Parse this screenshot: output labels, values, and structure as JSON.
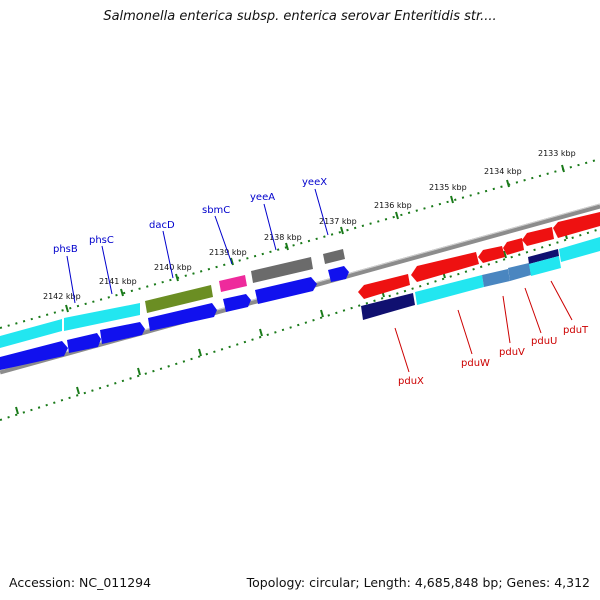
{
  "title": "Salmonella enterica subsp. enterica serovar Enteritidis str....",
  "footer": {
    "accession": "Accession: NC_011294",
    "topology": "Topology: circular; Length: 4,685,848 bp; Genes: 4,312"
  },
  "colors": {
    "background": "#ffffff",
    "backbone": "#8c8c8c",
    "ruler_ticks": "#1a7a1a",
    "labels_forward": "#0000cc",
    "labels_reverse": "#cc0000",
    "gene_red": "#ee1111",
    "gene_cyan": "#22e6f0",
    "gene_blue": "#1111ee",
    "gene_navy": "#101070",
    "gene_steel": "#4a86c0",
    "gene_olive": "#6b8e23",
    "gene_magenta": "#ee2a9c",
    "gene_gray": "#6b6b6b"
  },
  "ruler": {
    "unit": "kbp",
    "ticks": [
      {
        "text": "2133 kbp"
      },
      {
        "text": "2134 kbp"
      },
      {
        "text": "2135 kbp"
      },
      {
        "text": "2136 kbp"
      },
      {
        "text": "2137 kbp"
      },
      {
        "text": "2138 kbp"
      },
      {
        "text": "2139 kbp"
      },
      {
        "text": "2140 kbp"
      },
      {
        "text": "2141 kbp"
      },
      {
        "text": "2142 kbp"
      }
    ]
  },
  "gene_labels": [
    {
      "name": "phsB",
      "strand": "forward"
    },
    {
      "name": "phsC",
      "strand": "forward"
    },
    {
      "name": "dacD",
      "strand": "forward"
    },
    {
      "name": "sbmC",
      "strand": "forward"
    },
    {
      "name": "yeeA",
      "strand": "forward"
    },
    {
      "name": "yeeX",
      "strand": "forward"
    },
    {
      "name": "pduX",
      "strand": "reverse"
    },
    {
      "name": "pduW",
      "strand": "reverse"
    },
    {
      "name": "pduV",
      "strand": "reverse"
    },
    {
      "name": "pduU",
      "strand": "reverse"
    },
    {
      "name": "pduT",
      "strand": "reverse"
    }
  ]
}
